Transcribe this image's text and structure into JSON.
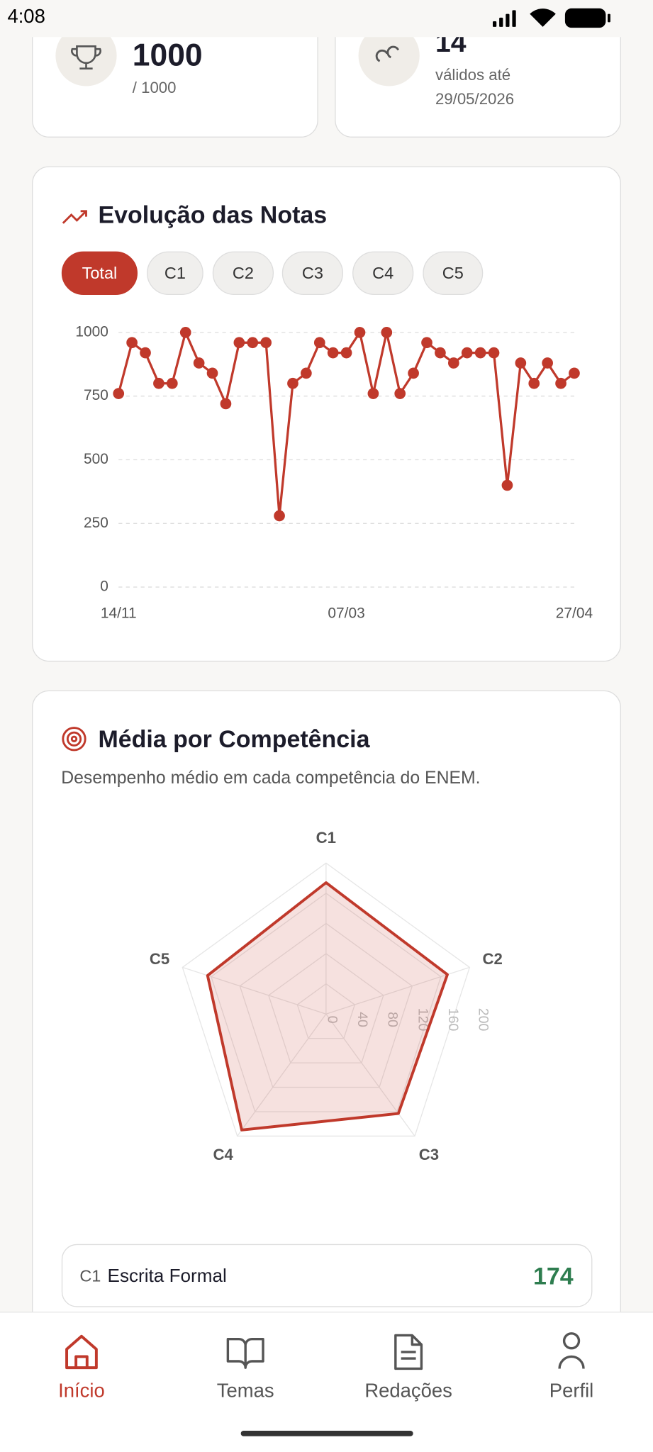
{
  "status": {
    "time": "4:08"
  },
  "cards": [
    {
      "value": "1000",
      "sub": "/ 1000"
    },
    {
      "value": "14",
      "sub": "válidos até",
      "sub2": "29/05/2026"
    }
  ],
  "filters": [
    "Total",
    "C1",
    "C2",
    "C3",
    "C4",
    "C5"
  ],
  "chart_data": [
    {
      "type": "line",
      "title": "Evolução das Notas",
      "categories": [
        "14/11",
        null,
        null,
        null,
        null,
        null,
        null,
        null,
        null,
        null,
        null,
        null,
        null,
        null,
        null,
        null,
        null,
        "07/03",
        null,
        null,
        null,
        null,
        null,
        null,
        null,
        null,
        null,
        null,
        null,
        null,
        null,
        null,
        null,
        null,
        "27/04"
      ],
      "series": [
        {
          "name": "Total",
          "color": "#c0392b",
          "values": [
            760,
            960,
            920,
            800,
            800,
            1000,
            880,
            840,
            720,
            960,
            960,
            960,
            280,
            800,
            840,
            960,
            920,
            920,
            1000,
            760,
            1000,
            760,
            840,
            960,
            920,
            880,
            920,
            920,
            920,
            400,
            880,
            800,
            880,
            800,
            840
          ]
        }
      ],
      "ylim": [
        0,
        1000
      ],
      "yticks": [
        0,
        250,
        500,
        750,
        1000
      ],
      "grid": true
    },
    {
      "type": "radar",
      "title": "Média por Competência",
      "subtitle": "Desempenho médio em cada competência do ENEM.",
      "categories": [
        "C1",
        "C2",
        "C3",
        "C4",
        "C5"
      ],
      "series": [
        {
          "name": "Média",
          "color": "#c0392b",
          "values": [
            174,
            169,
            163,
            190,
            165
          ]
        }
      ],
      "rlim": [
        0,
        200
      ],
      "rticks": [
        0,
        40,
        80,
        120,
        160,
        200
      ]
    }
  ],
  "list": [
    {
      "code": "C1",
      "label": "Escrita Formal",
      "value": "174"
    }
  ],
  "nav": [
    "Início",
    "Temas",
    "Redações",
    "Perfil"
  ]
}
